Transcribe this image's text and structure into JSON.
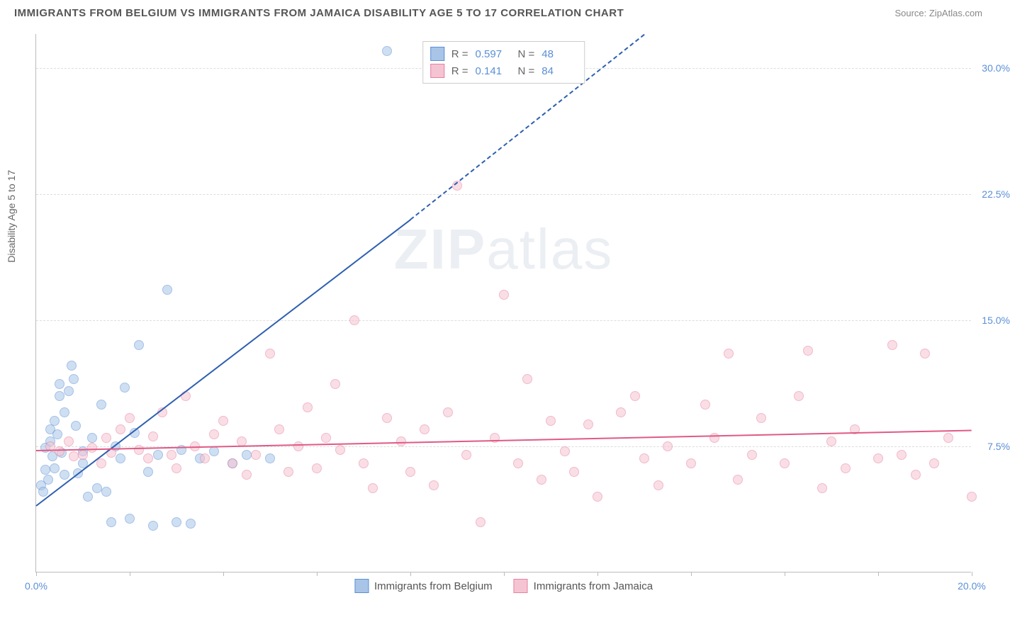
{
  "title": "IMMIGRANTS FROM BELGIUM VS IMMIGRANTS FROM JAMAICA DISABILITY AGE 5 TO 17 CORRELATION CHART",
  "source": "Source: ZipAtlas.com",
  "watermark_prefix": "ZIP",
  "watermark_suffix": "atlas",
  "chart": {
    "type": "scatter",
    "y_axis_label": "Disability Age 5 to 17",
    "xlim": [
      0,
      20
    ],
    "ylim": [
      0,
      32
    ],
    "x_ticks": [
      0,
      2,
      4,
      6,
      8,
      10,
      12,
      14,
      16,
      18,
      20
    ],
    "x_tick_labels": {
      "0": "0.0%",
      "20": "20.0%"
    },
    "y_gridlines": [
      7.5,
      15.0,
      22.5,
      30.0
    ],
    "y_tick_labels": [
      "7.5%",
      "15.0%",
      "22.5%",
      "30.0%"
    ],
    "background_color": "#ffffff",
    "grid_color": "#dddddd",
    "axis_color": "#bbbbbb",
    "label_color": "#5b8fd6",
    "marker_radius": 7,
    "marker_opacity": 0.55
  },
  "series": [
    {
      "name": "Immigrants from Belgium",
      "fill_color": "#a8c5e8",
      "stroke_color": "#5b8fd6",
      "line_color": "#2e5fb0",
      "R": "0.597",
      "N": "48",
      "trend": {
        "x1": 0,
        "y1": 4.0,
        "x2": 8.0,
        "y2": 21.0,
        "x2_dashed": 13.0,
        "y2_dashed": 32.0
      },
      "points": [
        [
          0.1,
          5.2
        ],
        [
          0.15,
          4.8
        ],
        [
          0.2,
          6.1
        ],
        [
          0.2,
          7.4
        ],
        [
          0.25,
          5.5
        ],
        [
          0.3,
          7.8
        ],
        [
          0.3,
          8.5
        ],
        [
          0.35,
          6.9
        ],
        [
          0.4,
          6.2
        ],
        [
          0.4,
          9.0
        ],
        [
          0.45,
          8.2
        ],
        [
          0.5,
          10.5
        ],
        [
          0.5,
          11.2
        ],
        [
          0.55,
          7.1
        ],
        [
          0.6,
          5.8
        ],
        [
          0.6,
          9.5
        ],
        [
          0.7,
          10.8
        ],
        [
          0.75,
          12.3
        ],
        [
          0.8,
          11.5
        ],
        [
          0.85,
          8.7
        ],
        [
          0.9,
          5.9
        ],
        [
          1.0,
          6.5
        ],
        [
          1.0,
          7.2
        ],
        [
          1.1,
          4.5
        ],
        [
          1.2,
          8.0
        ],
        [
          1.3,
          5.0
        ],
        [
          1.4,
          10.0
        ],
        [
          1.5,
          4.8
        ],
        [
          1.6,
          3.0
        ],
        [
          1.7,
          7.5
        ],
        [
          1.8,
          6.8
        ],
        [
          1.9,
          11.0
        ],
        [
          2.0,
          3.2
        ],
        [
          2.1,
          8.3
        ],
        [
          2.2,
          13.5
        ],
        [
          2.4,
          6.0
        ],
        [
          2.5,
          2.8
        ],
        [
          2.6,
          7.0
        ],
        [
          2.8,
          16.8
        ],
        [
          3.0,
          3.0
        ],
        [
          3.1,
          7.3
        ],
        [
          3.3,
          2.9
        ],
        [
          3.5,
          6.8
        ],
        [
          3.8,
          7.2
        ],
        [
          4.2,
          6.5
        ],
        [
          4.5,
          7.0
        ],
        [
          5.0,
          6.8
        ],
        [
          7.5,
          31.0
        ]
      ]
    },
    {
      "name": "Immigrants from Jamaica",
      "fill_color": "#f5c4d3",
      "stroke_color": "#e8809f",
      "line_color": "#e05a85",
      "R": "0.141",
      "N": "84",
      "trend": {
        "x1": 0,
        "y1": 7.3,
        "x2": 20,
        "y2": 8.5
      },
      "points": [
        [
          0.3,
          7.5
        ],
        [
          0.5,
          7.2
        ],
        [
          0.7,
          7.8
        ],
        [
          0.8,
          6.9
        ],
        [
          1.0,
          7.0
        ],
        [
          1.2,
          7.4
        ],
        [
          1.4,
          6.5
        ],
        [
          1.5,
          8.0
        ],
        [
          1.6,
          7.1
        ],
        [
          1.8,
          8.5
        ],
        [
          2.0,
          9.2
        ],
        [
          2.2,
          7.3
        ],
        [
          2.4,
          6.8
        ],
        [
          2.5,
          8.1
        ],
        [
          2.7,
          9.5
        ],
        [
          2.9,
          7.0
        ],
        [
          3.0,
          6.2
        ],
        [
          3.2,
          10.5
        ],
        [
          3.4,
          7.5
        ],
        [
          3.6,
          6.8
        ],
        [
          3.8,
          8.2
        ],
        [
          4.0,
          9.0
        ],
        [
          4.2,
          6.5
        ],
        [
          4.4,
          7.8
        ],
        [
          4.5,
          5.8
        ],
        [
          4.7,
          7.0
        ],
        [
          5.0,
          13.0
        ],
        [
          5.2,
          8.5
        ],
        [
          5.4,
          6.0
        ],
        [
          5.6,
          7.5
        ],
        [
          5.8,
          9.8
        ],
        [
          6.0,
          6.2
        ],
        [
          6.2,
          8.0
        ],
        [
          6.4,
          11.2
        ],
        [
          6.5,
          7.3
        ],
        [
          6.8,
          15.0
        ],
        [
          7.0,
          6.5
        ],
        [
          7.2,
          5.0
        ],
        [
          7.5,
          9.2
        ],
        [
          7.8,
          7.8
        ],
        [
          8.0,
          6.0
        ],
        [
          8.3,
          8.5
        ],
        [
          8.5,
          5.2
        ],
        [
          8.8,
          9.5
        ],
        [
          9.0,
          23.0
        ],
        [
          9.2,
          7.0
        ],
        [
          9.5,
          3.0
        ],
        [
          9.8,
          8.0
        ],
        [
          10.0,
          16.5
        ],
        [
          10.3,
          6.5
        ],
        [
          10.5,
          11.5
        ],
        [
          10.8,
          5.5
        ],
        [
          11.0,
          9.0
        ],
        [
          11.3,
          7.2
        ],
        [
          11.5,
          6.0
        ],
        [
          11.8,
          8.8
        ],
        [
          12.0,
          4.5
        ],
        [
          12.5,
          9.5
        ],
        [
          12.8,
          10.5
        ],
        [
          13.0,
          6.8
        ],
        [
          13.3,
          5.2
        ],
        [
          13.5,
          7.5
        ],
        [
          14.0,
          6.5
        ],
        [
          14.3,
          10.0
        ],
        [
          14.5,
          8.0
        ],
        [
          14.8,
          13.0
        ],
        [
          15.0,
          5.5
        ],
        [
          15.3,
          7.0
        ],
        [
          15.5,
          9.2
        ],
        [
          16.0,
          6.5
        ],
        [
          16.3,
          10.5
        ],
        [
          16.5,
          13.2
        ],
        [
          16.8,
          5.0
        ],
        [
          17.0,
          7.8
        ],
        [
          17.3,
          6.2
        ],
        [
          17.5,
          8.5
        ],
        [
          18.0,
          6.8
        ],
        [
          18.3,
          13.5
        ],
        [
          18.5,
          7.0
        ],
        [
          18.8,
          5.8
        ],
        [
          19.0,
          13.0
        ],
        [
          19.2,
          6.5
        ],
        [
          19.5,
          8.0
        ],
        [
          20.0,
          4.5
        ]
      ]
    }
  ],
  "legend_labels": {
    "R": "R =",
    "N": "N ="
  }
}
